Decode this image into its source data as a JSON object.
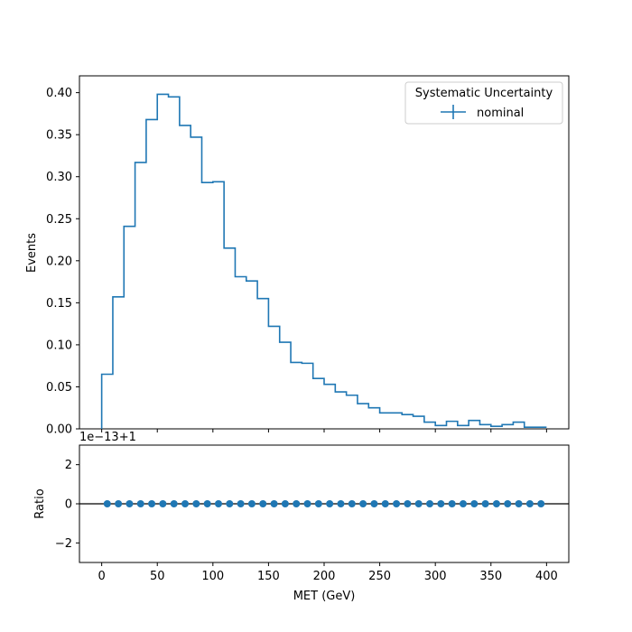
{
  "chart_data": [
    {
      "type": "step",
      "panel": "main",
      "ylabel": "Events",
      "xlim": [
        -20,
        420
      ],
      "ylim": [
        0,
        0.42
      ],
      "yticks": [
        0.0,
        0.05,
        0.1,
        0.15,
        0.2,
        0.25,
        0.3,
        0.35,
        0.4
      ],
      "ytick_labels": [
        "0.00",
        "0.05",
        "0.10",
        "0.15",
        "0.20",
        "0.25",
        "0.30",
        "0.35",
        "0.40"
      ],
      "bin_edges": [
        0,
        10,
        20,
        30,
        40,
        50,
        60,
        70,
        80,
        90,
        100,
        110,
        120,
        130,
        140,
        150,
        160,
        170,
        180,
        190,
        200,
        210,
        220,
        230,
        240,
        250,
        260,
        270,
        280,
        290,
        300,
        310,
        320,
        330,
        340,
        350,
        360,
        370,
        380,
        390,
        400
      ],
      "series": [
        {
          "name": "nominal",
          "color": "#1f77b4",
          "values": [
            0.065,
            0.157,
            0.241,
            0.317,
            0.368,
            0.398,
            0.395,
            0.361,
            0.347,
            0.293,
            0.294,
            0.215,
            0.181,
            0.176,
            0.155,
            0.122,
            0.103,
            0.079,
            0.078,
            0.06,
            0.053,
            0.044,
            0.04,
            0.03,
            0.025,
            0.019,
            0.019,
            0.017,
            0.015,
            0.008,
            0.004,
            0.009,
            0.004,
            0.01,
            0.005,
            0.003,
            0.005,
            0.008,
            0.002,
            0.002
          ]
        }
      ],
      "legend": {
        "title": "Systematic Uncertainty",
        "placement": "top-right"
      }
    },
    {
      "type": "scatter",
      "panel": "ratio",
      "xlabel": "MET (GeV)",
      "ylabel": "Ratio",
      "offset_text": "1e−13+1",
      "xlim": [
        -20,
        420
      ],
      "ylim": [
        -3,
        3
      ],
      "xticks": [
        0,
        50,
        100,
        150,
        200,
        250,
        300,
        350,
        400
      ],
      "xtick_labels": [
        "0",
        "50",
        "100",
        "150",
        "200",
        "250",
        "300",
        "350",
        "400"
      ],
      "yticks": [
        -2,
        0,
        2
      ],
      "ytick_labels": [
        "−2",
        "0",
        "2"
      ],
      "reference_line": 0,
      "x": [
        5,
        15,
        25,
        35,
        45,
        55,
        65,
        75,
        85,
        95,
        105,
        115,
        125,
        135,
        145,
        155,
        165,
        175,
        185,
        195,
        205,
        215,
        225,
        235,
        245,
        255,
        265,
        275,
        285,
        295,
        305,
        315,
        325,
        335,
        345,
        355,
        365,
        375,
        385,
        395
      ],
      "y": [
        0,
        0,
        0,
        0,
        0,
        0,
        0,
        0,
        0,
        0,
        0,
        0,
        0,
        0,
        0,
        0,
        0,
        0,
        0,
        0,
        0,
        0,
        0,
        0,
        0,
        0,
        0,
        0,
        0,
        0,
        0,
        0,
        0,
        0,
        0,
        0,
        0,
        0,
        0,
        0
      ],
      "color": "#1f77b4"
    }
  ]
}
